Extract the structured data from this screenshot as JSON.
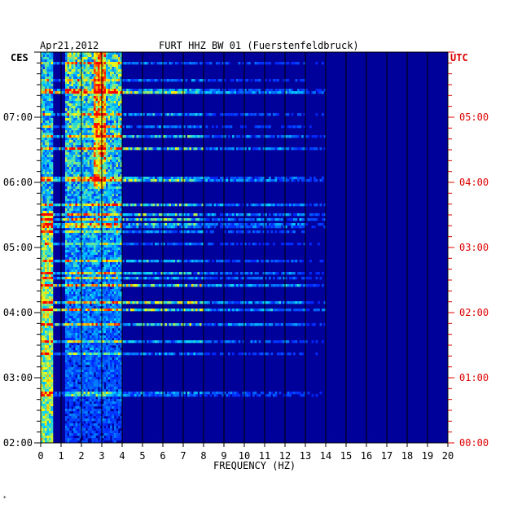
{
  "header": {
    "date": "Apr21,2012",
    "station": "FURT HHZ BW 01 (Fuerstenfeldbruck)"
  },
  "chart_data": {
    "type": "heatmap",
    "title": "FURT HHZ BW 01 (Fuerstenfeldbruck)",
    "date": "Apr21,2012",
    "xlabel": "FREQUENCY (HZ)",
    "xlim": [
      0,
      20
    ],
    "x_ticks": [
      "0",
      "1",
      "2",
      "3",
      "4",
      "5",
      "6",
      "7",
      "8",
      "9",
      "10",
      "11",
      "12",
      "13",
      "14",
      "15",
      "16",
      "17",
      "18",
      "19",
      "20"
    ],
    "left_axis_label": "CES",
    "right_axis_label": "UTC",
    "left_ticks": [
      "07:00",
      "06:00",
      "05:00",
      "04:00",
      "03:00",
      "02:00"
    ],
    "right_ticks": [
      "05:00",
      "04:00",
      "03:00",
      "02:00",
      "01:00",
      "00:00"
    ],
    "time_range_ces": [
      "02:00",
      "08:00"
    ],
    "colors": {
      "low": "#00008b",
      "mid": "#00c8ff",
      "high": "#ffff00",
      "max": "#ff0000",
      "utc_text": "#dd0000"
    },
    "description_bands": [
      {
        "freq_hz": [
          0.2,
          0.6
        ],
        "intensity": "high"
      },
      {
        "freq_hz": [
          1.5,
          4.0
        ],
        "intensity": "medium-high"
      },
      {
        "freq_hz": [
          4.0,
          14.0
        ],
        "intensity": "low-medium, intermittent horizontal streaks"
      },
      {
        "freq_hz": [
          14.0,
          20.0
        ],
        "intensity": "low"
      }
    ]
  }
}
